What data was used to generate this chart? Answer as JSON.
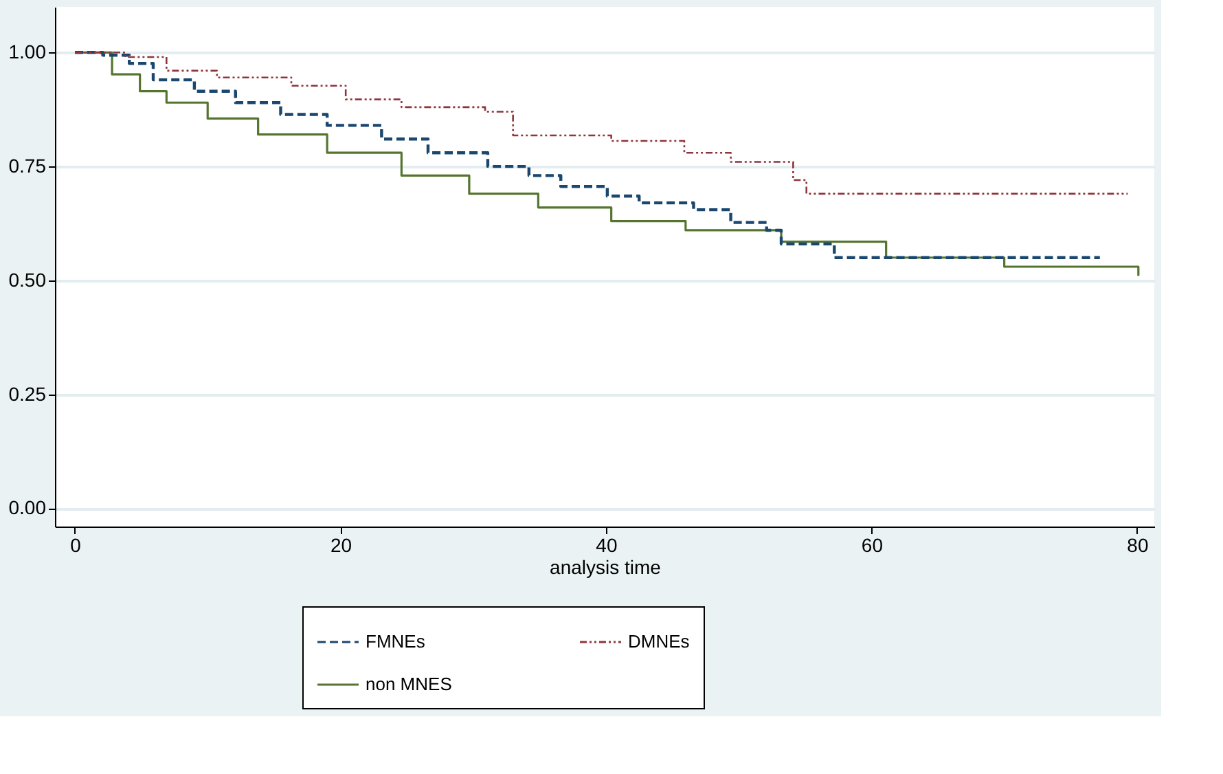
{
  "chart_data": {
    "type": "step",
    "xlabel": "analysis time",
    "xlim": [
      -1.5,
      81.3
    ],
    "ylim": [
      -0.04,
      1.1
    ],
    "xticks": [
      0,
      20,
      40,
      60,
      80
    ],
    "yticks": [
      {
        "value": 0,
        "label": "0.00"
      },
      {
        "value": 0.25,
        "label": "0.25"
      },
      {
        "value": 0.5,
        "label": "0.50"
      },
      {
        "value": 0.75,
        "label": "0.75"
      },
      {
        "value": 1,
        "label": "1.00"
      }
    ],
    "grid": "y",
    "legend": "bottom",
    "marker": "none",
    "series": [
      {
        "name": "FMNEs",
        "color": "#1a476f",
        "line_style": "dashed",
        "x": [
          0,
          2.1,
          4.1,
          5.9,
          9,
          12.1,
          15.5,
          19,
          23.1,
          26.6,
          31.1,
          34.2,
          36.6,
          40.1,
          42.5,
          46.6,
          49.4,
          52.1,
          53.2,
          57.2,
          77.2
        ],
        "values": [
          1,
          0.994,
          0.976,
          0.94,
          0.915,
          0.89,
          0.864,
          0.84,
          0.81,
          0.78,
          0.75,
          0.73,
          0.706,
          0.685,
          0.67,
          0.655,
          0.627,
          0.61,
          0.58,
          0.55,
          0.55
        ]
      },
      {
        "name": "DMNEs",
        "color": "#90353b",
        "line_style": "dotted",
        "x": [
          0,
          3.8,
          6.9,
          10.7,
          16.3,
          20.4,
          24.6,
          30.9,
          33,
          40.4,
          45.9,
          49.4,
          54.1,
          55.1,
          79.3
        ],
        "values": [
          1,
          0.99,
          0.96,
          0.945,
          0.927,
          0.897,
          0.88,
          0.87,
          0.818,
          0.806,
          0.78,
          0.76,
          0.72,
          0.69,
          0.69
        ]
      },
      {
        "name": "non MNES",
        "color": "#55752f",
        "line_style": "solid",
        "x": [
          0,
          1,
          2.8,
          4.9,
          6.9,
          10,
          13.8,
          19,
          24.6,
          29.7,
          34.9,
          40.4,
          46,
          53.2,
          61.1,
          70,
          80.1
        ],
        "values": [
          1,
          1,
          0.952,
          0.915,
          0.89,
          0.855,
          0.82,
          0.78,
          0.73,
          0.69,
          0.66,
          0.63,
          0.61,
          0.585,
          0.55,
          0.53,
          0.51
        ]
      }
    ]
  }
}
